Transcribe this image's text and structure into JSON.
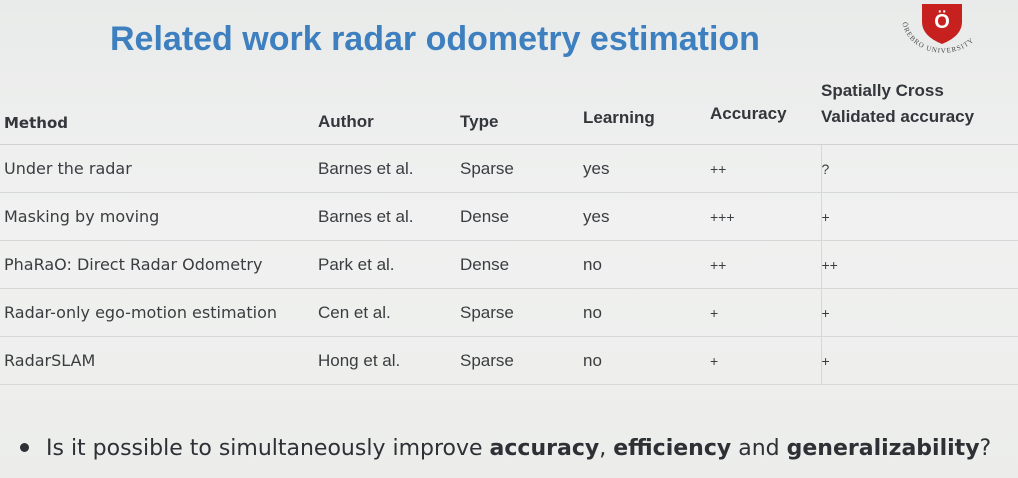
{
  "slide": {
    "title": "Related work radar odometry estimation",
    "logo_text": "ÖREBRO UNIVERSITY",
    "logo_letter": "Ö"
  },
  "table": {
    "headers": {
      "method": "Method",
      "author": "Author",
      "type": "Type",
      "learning": "Learning",
      "accuracy": "Accuracy",
      "scv_line1": "Spatially Cross",
      "scv_line2": "Validated accuracy"
    },
    "rows": [
      {
        "method": "Under the radar",
        "author": "Barnes et al.",
        "type": "Sparse",
        "learning": "yes",
        "accuracy": "++",
        "scv": "?"
      },
      {
        "method": "Masking by moving",
        "author": "Barnes et al.",
        "type": "Dense",
        "learning": "yes",
        "accuracy": "+++",
        "scv": "+"
      },
      {
        "method": "PhaRaO: Direct Radar Odometry",
        "author": "Park et al.",
        "type": "Dense",
        "learning": "no",
        "accuracy": "++",
        "scv": "++"
      },
      {
        "method": "Radar-only ego-motion estimation",
        "author": "Cen et al.",
        "type": "Sparse",
        "learning": "no",
        "accuracy": "+",
        "scv": "+"
      },
      {
        "method": "RadarSLAM",
        "author": "Hong et al.",
        "type": "Sparse",
        "learning": "no",
        "accuracy": "+",
        "scv": "+"
      }
    ]
  },
  "bullet": {
    "pre": "Is it possible to simultaneously improve ",
    "b1": "accuracy",
    "sep1": ", ",
    "b2": "efficiency",
    "sep2": " and ",
    "b3": "generalizability",
    "post": "?"
  },
  "colors": {
    "title": "#3d7fbf",
    "logo_red": "#c7211f"
  }
}
